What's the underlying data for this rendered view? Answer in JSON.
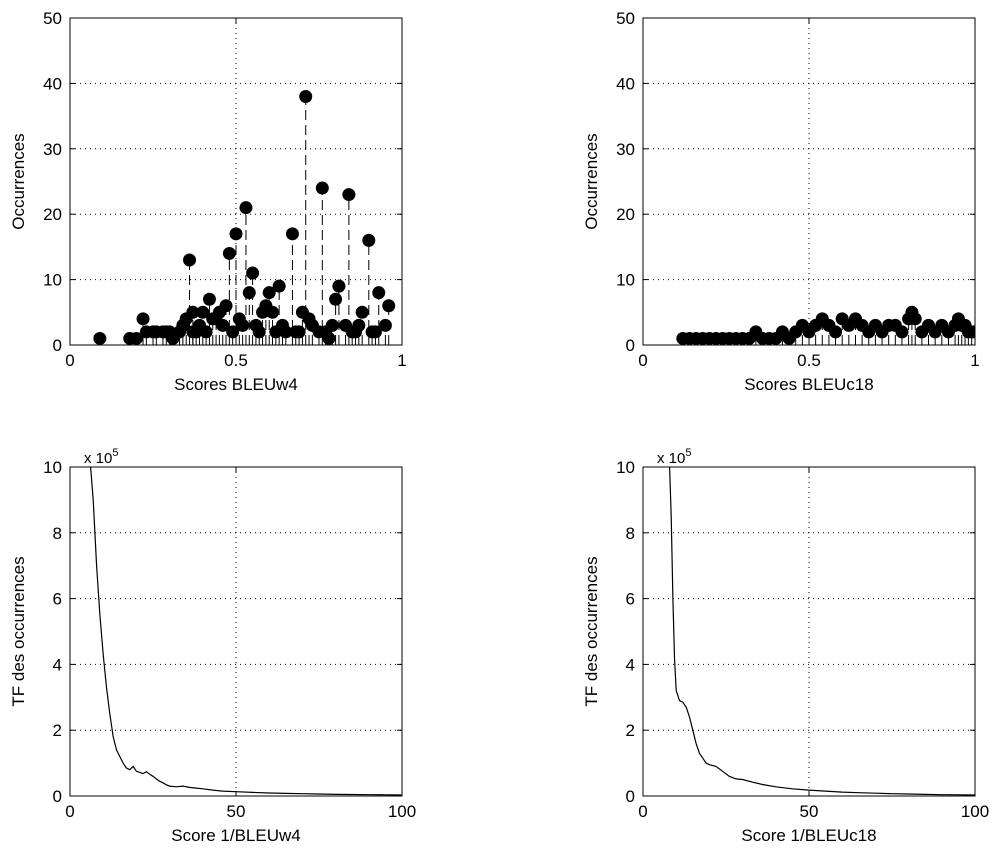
{
  "chart_data": [
    {
      "type": "scatter",
      "style": "stem",
      "xlabel": "Scores BLEUw4",
      "ylabel": "Occurrences",
      "xlim": [
        0,
        1
      ],
      "ylim": [
        0,
        50
      ],
      "xticks": [
        0,
        0.5,
        1
      ],
      "xtick_labels": [
        "0",
        "0.5",
        "1"
      ],
      "yticks": [
        0,
        10,
        20,
        30,
        40,
        50
      ],
      "ytick_labels": [
        "0",
        "10",
        "20",
        "30",
        "40",
        "50"
      ],
      "grid": "dotted",
      "x": [
        0.09,
        0.18,
        0.2,
        0.22,
        0.23,
        0.25,
        0.26,
        0.28,
        0.29,
        0.3,
        0.31,
        0.33,
        0.34,
        0.35,
        0.36,
        0.37,
        0.37,
        0.38,
        0.39,
        0.4,
        0.41,
        0.42,
        0.43,
        0.44,
        0.45,
        0.46,
        0.47,
        0.48,
        0.49,
        0.5,
        0.51,
        0.52,
        0.53,
        0.54,
        0.55,
        0.56,
        0.57,
        0.58,
        0.59,
        0.6,
        0.61,
        0.62,
        0.63,
        0.64,
        0.65,
        0.67,
        0.68,
        0.69,
        0.7,
        0.71,
        0.72,
        0.73,
        0.75,
        0.76,
        0.77,
        0.78,
        0.79,
        0.8,
        0.81,
        0.83,
        0.84,
        0.85,
        0.86,
        0.87,
        0.88,
        0.9,
        0.91,
        0.92,
        0.93,
        0.95,
        0.96
      ],
      "y": [
        1,
        1,
        1,
        4,
        2,
        2,
        2,
        2,
        2,
        2,
        1,
        2,
        3,
        4,
        13,
        5,
        2,
        2,
        3,
        5,
        2,
        7,
        4,
        4,
        5,
        3,
        6,
        14,
        2,
        17,
        4,
        3,
        21,
        8,
        11,
        3,
        2,
        5,
        6,
        8,
        5,
        2,
        9,
        3,
        2,
        17,
        2,
        2,
        5,
        38,
        4,
        3,
        2,
        24,
        2,
        1,
        3,
        7,
        9,
        3,
        23,
        2,
        2,
        3,
        5,
        16,
        2,
        2,
        8,
        3,
        6
      ]
    },
    {
      "type": "scatter",
      "style": "stem",
      "xlabel": "Scores BLEUc18",
      "ylabel": "Occurrences",
      "xlim": [
        0,
        1
      ],
      "ylim": [
        0,
        50
      ],
      "xticks": [
        0,
        0.5,
        1
      ],
      "xtick_labels": [
        "0",
        "0.5",
        "1"
      ],
      "yticks": [
        0,
        10,
        20,
        30,
        40,
        50
      ],
      "ytick_labels": [
        "0",
        "10",
        "20",
        "30",
        "40",
        "50"
      ],
      "grid": "dotted",
      "x": [
        0.12,
        0.14,
        0.16,
        0.18,
        0.2,
        0.22,
        0.24,
        0.26,
        0.28,
        0.3,
        0.32,
        0.34,
        0.36,
        0.38,
        0.4,
        0.42,
        0.44,
        0.46,
        0.48,
        0.5,
        0.52,
        0.54,
        0.56,
        0.58,
        0.6,
        0.62,
        0.64,
        0.66,
        0.68,
        0.7,
        0.72,
        0.74,
        0.76,
        0.78,
        0.8,
        0.81,
        0.82,
        0.84,
        0.86,
        0.88,
        0.9,
        0.92,
        0.94,
        0.95,
        0.96,
        0.97,
        0.98,
        0.99,
        1.0
      ],
      "y": [
        1,
        1,
        1,
        1,
        1,
        1,
        1,
        1,
        1,
        1,
        1,
        2,
        1,
        1,
        1,
        2,
        1,
        2,
        3,
        2,
        3,
        4,
        3,
        2,
        4,
        3,
        4,
        3,
        2,
        3,
        2,
        3,
        3,
        2,
        4,
        5,
        4,
        2,
        3,
        2,
        3,
        2,
        3,
        4,
        3,
        3,
        2,
        2,
        2
      ]
    },
    {
      "type": "line",
      "xlabel": "Score 1/BLEUw4",
      "ylabel": "TF des occurrences",
      "xlim": [
        0,
        100
      ],
      "ylim": [
        0,
        1000000
      ],
      "xticks": [
        0,
        50,
        100
      ],
      "xtick_labels": [
        "0",
        "50",
        "100"
      ],
      "yticks": [
        0,
        200000,
        400000,
        600000,
        800000,
        1000000
      ],
      "ytick_labels": [
        "0",
        "2",
        "4",
        "6",
        "8",
        "10"
      ],
      "y_exponent": {
        "base": "x 10",
        "power": "5"
      },
      "grid": "dotted",
      "x": [
        6.2,
        7,
        8,
        9,
        10,
        11,
        12,
        13,
        14,
        15,
        16,
        17,
        18,
        19,
        20,
        21,
        22,
        23,
        24,
        25,
        26,
        27,
        28,
        29,
        30,
        32,
        34,
        36,
        38,
        40,
        43,
        46,
        50,
        55,
        60,
        65,
        70,
        75,
        80,
        85,
        90,
        95,
        100
      ],
      "y": [
        1000000,
        900000,
        700000,
        550000,
        430000,
        330000,
        250000,
        180000,
        140000,
        120000,
        100000,
        85000,
        80000,
        90000,
        75000,
        72000,
        68000,
        74000,
        66000,
        60000,
        52000,
        45000,
        40000,
        34000,
        30000,
        28000,
        30000,
        26000,
        24000,
        22000,
        18000,
        15000,
        13000,
        11000,
        9000,
        8000,
        7000,
        6000,
        5000,
        4500,
        4000,
        3500,
        3000
      ]
    },
    {
      "type": "line",
      "xlabel": "Score 1/BLEUc18",
      "ylabel": "TF des occurrences",
      "xlim": [
        0,
        100
      ],
      "ylim": [
        0,
        1000000
      ],
      "xticks": [
        0,
        50,
        100
      ],
      "xtick_labels": [
        "0",
        "50",
        "100"
      ],
      "yticks": [
        0,
        200000,
        400000,
        600000,
        800000,
        1000000
      ],
      "ytick_labels": [
        "0",
        "2",
        "4",
        "6",
        "8",
        "10"
      ],
      "y_exponent": {
        "base": "x 10",
        "power": "5"
      },
      "grid": "dotted",
      "x": [
        8,
        8.5,
        9,
        9.5,
        10,
        11,
        12,
        13,
        14,
        15,
        16,
        17,
        18,
        19,
        20,
        22,
        24,
        26,
        28,
        30,
        33,
        36,
        40,
        45,
        50,
        55,
        60,
        65,
        70,
        75,
        80,
        85,
        90,
        95,
        100
      ],
      "y": [
        1000000,
        850000,
        600000,
        420000,
        320000,
        290000,
        285000,
        270000,
        240000,
        200000,
        160000,
        130000,
        115000,
        100000,
        95000,
        90000,
        75000,
        60000,
        52000,
        50000,
        42000,
        35000,
        28000,
        22000,
        18000,
        15000,
        12000,
        10000,
        8500,
        7000,
        6000,
        5000,
        4000,
        3500,
        3000
      ]
    }
  ]
}
